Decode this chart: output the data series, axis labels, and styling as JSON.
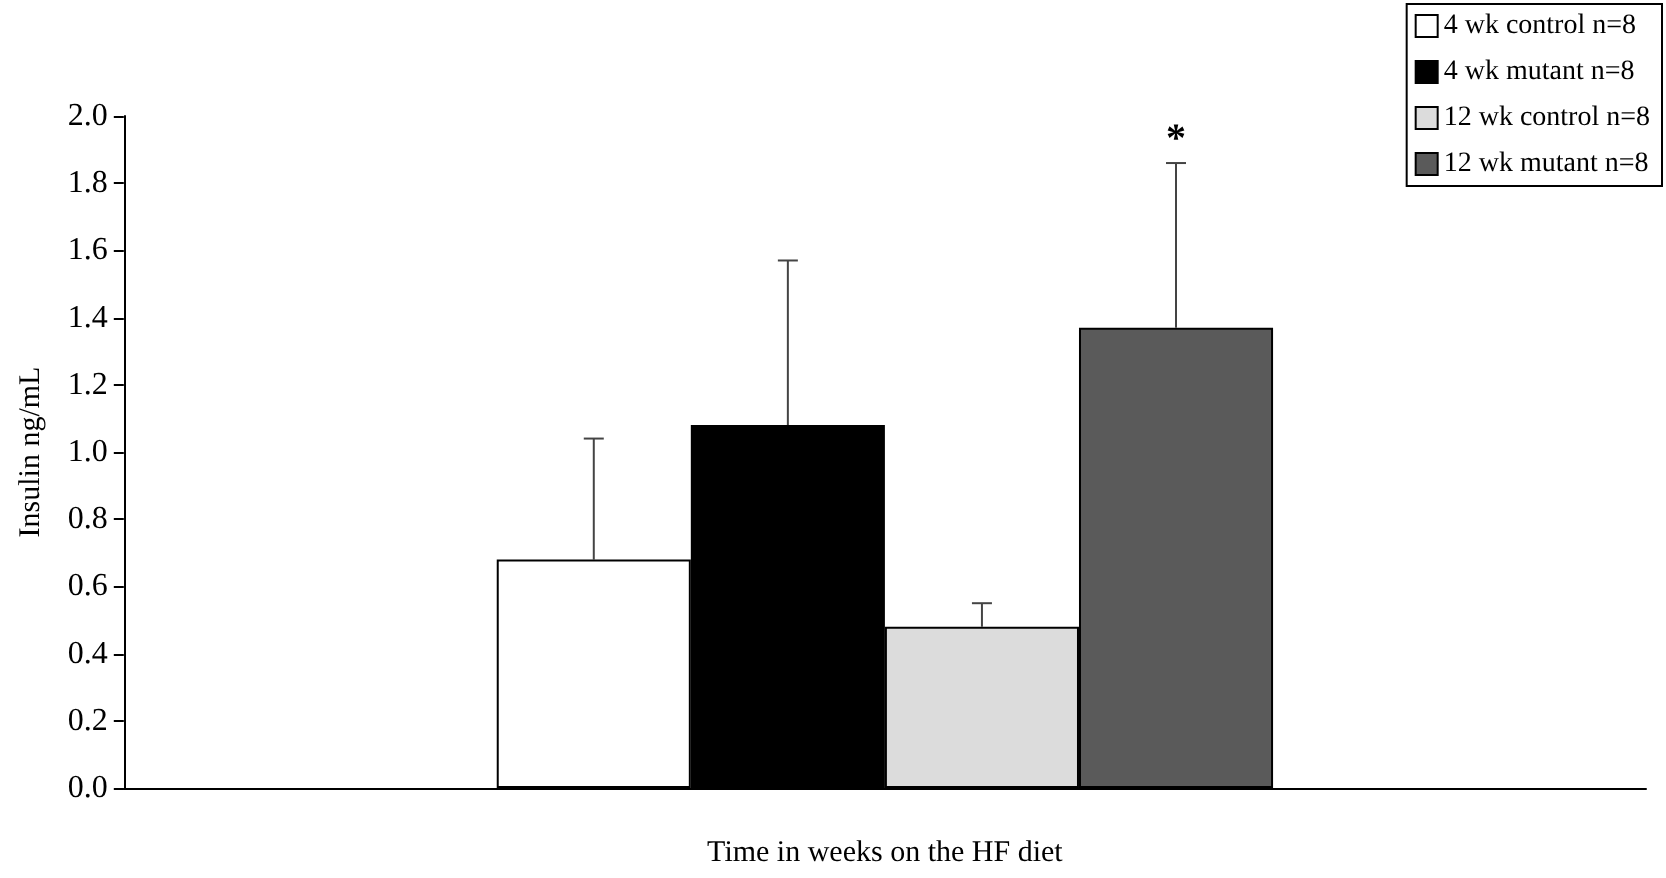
{
  "chart_data": {
    "type": "bar",
    "xlabel": "Time in weeks on the HF diet",
    "ylabel": "Insulin ng/mL",
    "categories": [
      null
    ],
    "series": [
      {
        "name": "4 wk control n=8",
        "color": "#ffffff",
        "values": [
          0.68
        ],
        "errors": [
          [
            0.68,
            1.04
          ]
        ]
      },
      {
        "name": "4 wk mutant n=8",
        "color": "#000000",
        "values": [
          1.08
        ],
        "errors": [
          [
            1.08,
            1.57
          ]
        ]
      },
      {
        "name": "12 wk control n=8",
        "color": "#dcdcdc",
        "values": [
          0.48
        ],
        "errors": [
          [
            0.48,
            0.55
          ]
        ]
      },
      {
        "name": "12 wk mutant n=8",
        "color": "#5a5a5a",
        "values": [
          1.37
        ],
        "errors": [
          [
            1.37,
            1.86
          ]
        ]
      }
    ],
    "ylim": [
      0,
      2
    ],
    "yticks": [
      {
        "value": 0,
        "label": "0.0"
      },
      {
        "value": 0.2,
        "label": "0.2"
      },
      {
        "value": 0.4,
        "label": "0.4"
      },
      {
        "value": 0.6,
        "label": "0.6"
      },
      {
        "value": 0.8,
        "label": "0.8"
      },
      {
        "value": 1,
        "label": "1.0"
      },
      {
        "value": 1.2,
        "label": "1.2"
      },
      {
        "value": 1.4,
        "label": "1.4"
      },
      {
        "value": 1.6,
        "label": "1.6"
      },
      {
        "value": 1.8,
        "label": "1.8"
      },
      {
        "value": 2,
        "label": "2.0"
      }
    ],
    "annotations": [
      {
        "text": "*",
        "y": 1.86
      }
    ],
    "legend": "top right",
    "grid": false
  }
}
